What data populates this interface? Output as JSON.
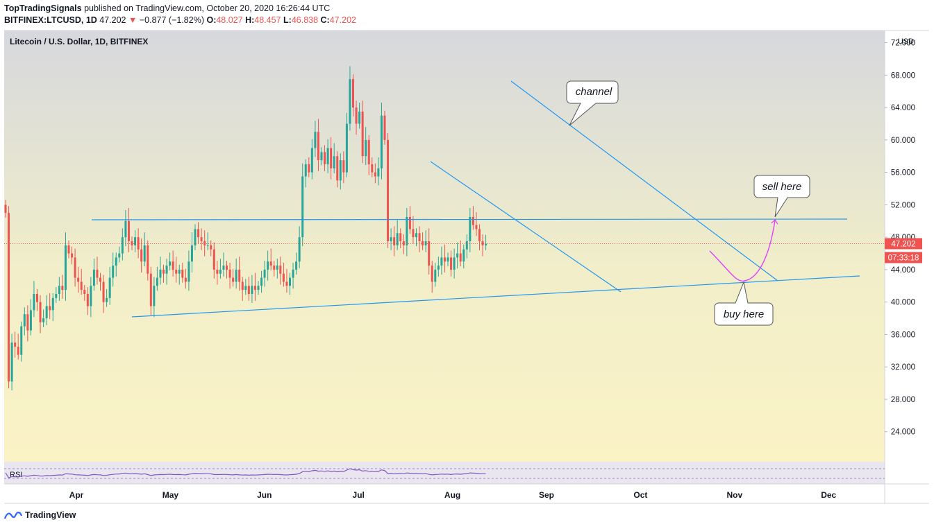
{
  "header": {
    "author": "TopTradingSignals",
    "published_text": "published on TradingView.com, October 20, 2020 16:26:44 UTC",
    "symbol": "BITFINEX:LTCUSD, 1D",
    "last": "47.202",
    "change": "−0.877 (−1.82%)",
    "o_label": "O:",
    "o": "48.027",
    "h_label": "H:",
    "h": "48.457",
    "l_label": "L:",
    "l": "46.838",
    "c_label": "C:",
    "c": "47.202"
  },
  "chart_data": {
    "type": "candlestick",
    "title": "Litecoin / U.S. Dollar, 1D, BITFINEX",
    "currency": "USD",
    "y_ticks": [
      24,
      28,
      32,
      36,
      40,
      44,
      48,
      52,
      56,
      60,
      64,
      68,
      72
    ],
    "y_tick_labels": [
      "24.000",
      "28.000",
      "32.000",
      "36.000",
      "40.000",
      "44.000",
      "48.000",
      "52.000",
      "56.000",
      "60.000",
      "64.000",
      "68.000",
      "72.000"
    ],
    "ylim": [
      20.3,
      73.5
    ],
    "x_labels": [
      "Apr",
      "May",
      "Jun",
      "Jul",
      "Aug",
      "Sep",
      "Oct",
      "Nov",
      "Dec"
    ],
    "last_price_label": "47.202",
    "countdown_label": "07:33:18",
    "last_price": 47.202,
    "closes": [
      51.0,
      30.2,
      35.0,
      34.5,
      33.5,
      37.0,
      38.5,
      36.5,
      39.0,
      41.0,
      40.0,
      37.5,
      38.0,
      39.5,
      39.0,
      40.5,
      41.0,
      42.0,
      41.5,
      47.0,
      46.0,
      45.5,
      43.0,
      42.5,
      41.5,
      41.0,
      39.5,
      42.0,
      44.0,
      43.0,
      42.5,
      40.0,
      40.5,
      43.0,
      44.5,
      45.5,
      46.0,
      48.0,
      50.0,
      47.5,
      47.0,
      48.0,
      46.5,
      45.0,
      47.0,
      43.5,
      39.5,
      42.0,
      43.0,
      44.0,
      43.5,
      44.5,
      45.0,
      44.0,
      43.5,
      44.0,
      43.0,
      42.5,
      45.0,
      47.0,
      49.0,
      48.0,
      47.5,
      47.0,
      47.0,
      46.5,
      44.0,
      43.5,
      44.0,
      44.5,
      44.0,
      43.0,
      42.5,
      44.0,
      42.5,
      41.5,
      42.0,
      41.0,
      42.0,
      41.5,
      42.0,
      43.0,
      44.0,
      45.0,
      44.5,
      44.0,
      44.5,
      43.5,
      42.5,
      42.0,
      43.0,
      44.0,
      45.0,
      48.0,
      55.5,
      57.0,
      56.0,
      59.0,
      61.0,
      57.5,
      58.5,
      57.0,
      59.0,
      56.5,
      58.0,
      55.0,
      57.5,
      56.0,
      62.0,
      67.5,
      64.0,
      62.0,
      63.5,
      58.0,
      60.0,
      57.0,
      56.0,
      55.5,
      56.5,
      63.0,
      60.0,
      47.5,
      48.0,
      47.0,
      48.5,
      47.5,
      47.0,
      50.5,
      49.0,
      48.0,
      48.5,
      47.5,
      47.0,
      47.5,
      44.5,
      42.5,
      44.0,
      44.5,
      45.5,
      45.0,
      45.5,
      44.0,
      45.5,
      46.0,
      45.0,
      46.5,
      47.5,
      50.5,
      49.5,
      49.0,
      47.5,
      47.0,
      47.202
    ],
    "series": [
      {
        "name": "RSI"
      }
    ],
    "annotations": [
      "channel",
      "sell here",
      "buy here"
    ]
  },
  "footer": {
    "brand": "TradingView"
  },
  "colors": {
    "up": "#26a69a",
    "down": "#ef5350",
    "line": "#2196f3",
    "arrow": "#e040fb"
  }
}
